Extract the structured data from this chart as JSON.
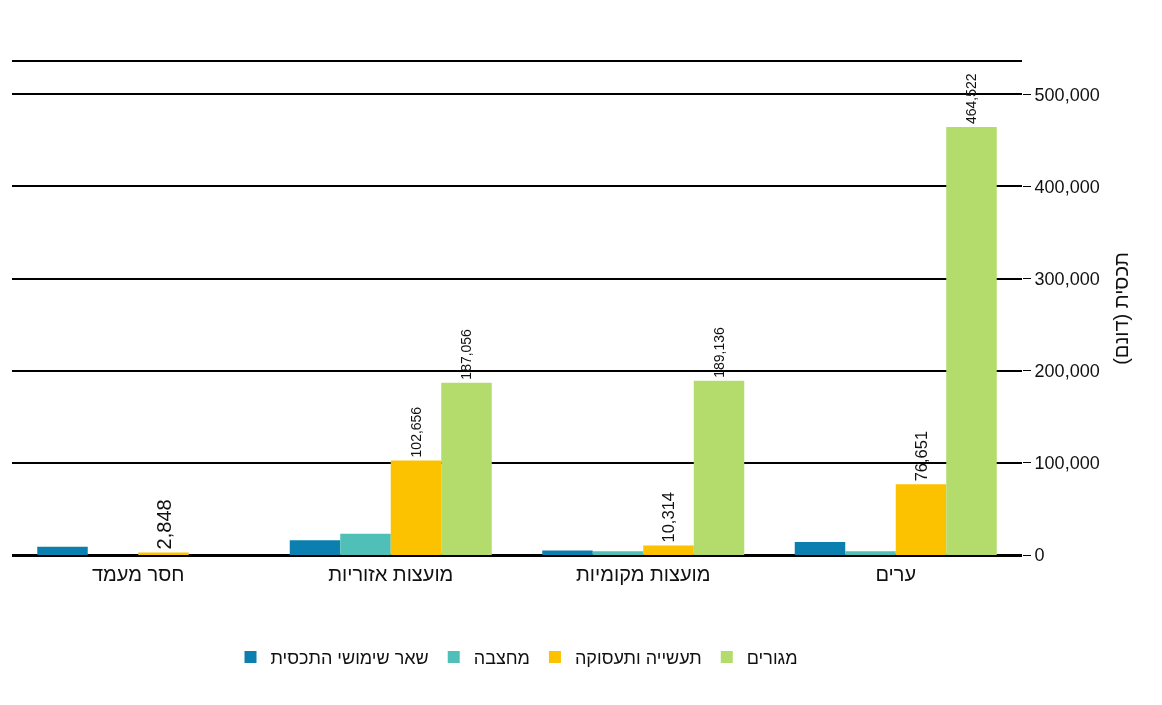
{
  "chart_data": {
    "type": "bar",
    "ylabel": "תכסית (דונם)",
    "categories": [
      "חסר מעמד",
      "מועצות אזוריות",
      "מועצות מקומיות",
      "ערים"
    ],
    "series": [
      {
        "name": "שאר שימושי התכסית",
        "color": "#0a7fb0",
        "values": [
          9000,
          16000,
          5000,
          14000
        ]
      },
      {
        "name": "מחצבה",
        "color": "#4fbfb8",
        "values": [
          null,
          23000,
          4000,
          4000
        ]
      },
      {
        "name": "תעשייה ותעסוקה",
        "color": "#fcc200",
        "values": [
          2848,
          102656,
          10314,
          76651
        ],
        "value_labels": [
          "2,848",
          "102,656",
          "10,314",
          "76,651"
        ]
      },
      {
        "name": "מגורים",
        "color": "#b3dc6c",
        "values": [
          null,
          187056,
          189136,
          464522
        ],
        "value_labels": [
          null,
          "187,056",
          "189,136",
          "464,522"
        ]
      }
    ],
    "ylim": [
      0,
      535000
    ],
    "yticks": [
      {
        "value": 0,
        "label": "0"
      },
      {
        "value": 100000,
        "label": "100,000"
      },
      {
        "value": 200000,
        "label": "200,000"
      },
      {
        "value": 300000,
        "label": "300,000"
      },
      {
        "value": 400000,
        "label": "400,000"
      },
      {
        "value": 500000,
        "label": "500,000"
      }
    ],
    "grid": "y",
    "legend": "bottom"
  }
}
